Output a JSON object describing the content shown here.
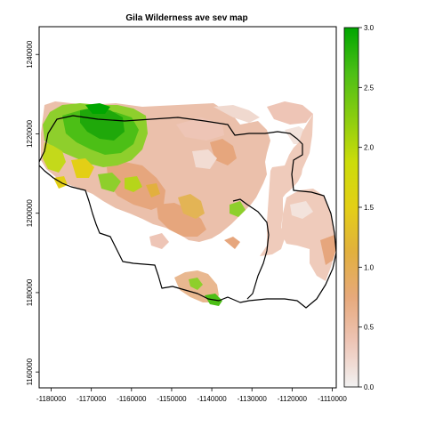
{
  "title": "Gila Wilderness ave sev map",
  "x_axis": {
    "ticks": [
      "-1180000",
      "-1170000",
      "-1160000",
      "-1150000",
      "-1140000",
      "-1130000",
      "-1120000",
      "-1110000"
    ],
    "values": [
      -1180000,
      -1170000,
      -1160000,
      -1150000,
      -1140000,
      -1130000,
      -1120000,
      -1110000
    ],
    "range": [
      -1183000,
      -1109000
    ]
  },
  "y_axis": {
    "ticks": [
      "1160000",
      "1180000",
      "1200000",
      "1220000",
      "1240000"
    ],
    "values": [
      1160000,
      1180000,
      1200000,
      1220000,
      1240000
    ],
    "range": [
      1156000,
      1247000
    ],
    "tick_labels_rotated": true
  },
  "legend": {
    "ticks": [
      "0.0",
      "0.5",
      "1.0",
      "1.5",
      "2.0",
      "2.5",
      "3.0"
    ],
    "range": [
      0,
      3
    ],
    "placement": "right",
    "colors": [
      "#f2f2f2",
      "#eec5b6",
      "#e7a97b",
      "#e2b03e",
      "#e3cf16",
      "#ccdc0a",
      "#8acd10",
      "#4cbf16",
      "#00a600"
    ]
  },
  "map": {
    "type": "raster",
    "value_name": "ave sev",
    "background": "#ffffff",
    "boundary_color": "#000000"
  }
}
